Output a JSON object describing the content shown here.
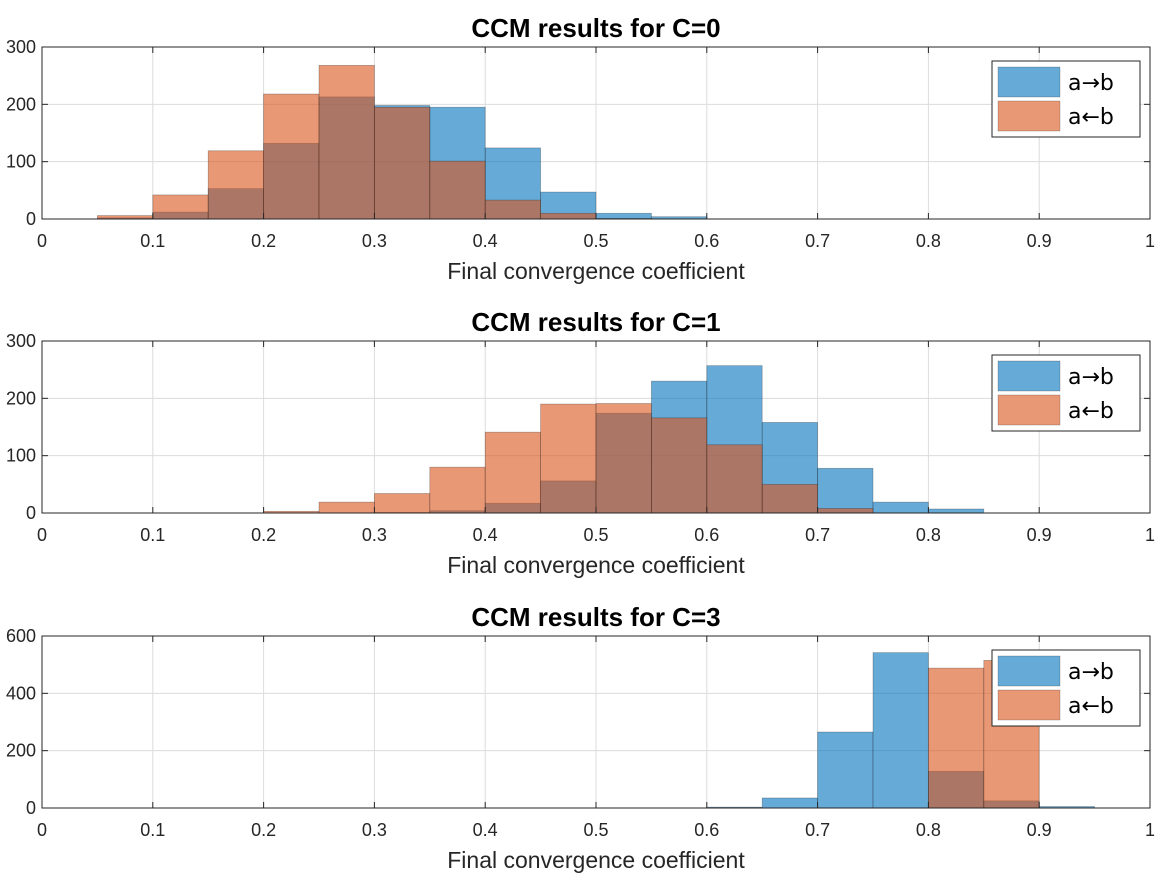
{
  "chart_data": [
    {
      "type": "bar",
      "title": "CCM results for C=0",
      "xlabel": "Final convergence coefficient",
      "ylabel": "",
      "xlim": [
        0,
        1
      ],
      "ylim": [
        0,
        300
      ],
      "xticks": [
        "0",
        "0.1",
        "0.2",
        "0.3",
        "0.4",
        "0.5",
        "0.6",
        "0.7",
        "0.8",
        "0.9",
        "1"
      ],
      "yticks": [
        "0",
        "100",
        "200",
        "300"
      ],
      "grid": true,
      "legend_position": "top-right",
      "bin_edges": [
        0,
        0.05,
        0.1,
        0.15,
        0.2,
        0.25,
        0.3,
        0.35,
        0.4,
        0.45,
        0.5,
        0.55,
        0.6,
        0.65,
        0.7,
        0.75,
        0.8,
        0.85,
        0.9,
        0.95,
        1
      ],
      "series": [
        {
          "name": "a→b",
          "color": "#0072BD",
          "values": [
            0,
            2,
            12,
            53,
            132,
            213,
            198,
            195,
            124,
            47,
            10,
            4,
            0,
            0,
            0,
            0,
            0,
            0,
            0,
            0
          ]
        },
        {
          "name": "a←b",
          "color": "#D95319",
          "values": [
            0,
            6,
            42,
            119,
            218,
            268,
            195,
            101,
            33,
            10,
            1,
            0,
            0,
            0,
            0,
            0,
            0,
            0,
            0,
            0
          ]
        }
      ]
    },
    {
      "type": "bar",
      "title": "CCM results for C=1",
      "xlabel": "Final convergence coefficient",
      "ylabel": "",
      "xlim": [
        0,
        1
      ],
      "ylim": [
        0,
        300
      ],
      "xticks": [
        "0",
        "0.1",
        "0.2",
        "0.3",
        "0.4",
        "0.5",
        "0.6",
        "0.7",
        "0.8",
        "0.9",
        "1"
      ],
      "yticks": [
        "0",
        "100",
        "200",
        "300"
      ],
      "grid": true,
      "legend_position": "top-right",
      "bin_edges": [
        0,
        0.05,
        0.1,
        0.15,
        0.2,
        0.25,
        0.3,
        0.35,
        0.4,
        0.45,
        0.5,
        0.55,
        0.6,
        0.65,
        0.7,
        0.75,
        0.8,
        0.85,
        0.9,
        0.95,
        1
      ],
      "series": [
        {
          "name": "a→b",
          "color": "#0072BD",
          "values": [
            0,
            0,
            0,
            0,
            0,
            0,
            1,
            4,
            17,
            56,
            174,
            230,
            257,
            158,
            78,
            19,
            7,
            0,
            0,
            0
          ]
        },
        {
          "name": "a←b",
          "color": "#D95319",
          "values": [
            0,
            0,
            0,
            0,
            3,
            19,
            34,
            80,
            141,
            190,
            191,
            166,
            119,
            50,
            8,
            0,
            0,
            0,
            0,
            0
          ]
        }
      ]
    },
    {
      "type": "bar",
      "title": "CCM results for C=3",
      "xlabel": "Final convergence coefficient",
      "ylabel": "",
      "xlim": [
        0,
        1
      ],
      "ylim": [
        0,
        600
      ],
      "xticks": [
        "0",
        "0.1",
        "0.2",
        "0.3",
        "0.4",
        "0.5",
        "0.6",
        "0.7",
        "0.8",
        "0.9",
        "1"
      ],
      "yticks": [
        "0",
        "200",
        "400",
        "600"
      ],
      "grid": true,
      "legend_position": "top-right",
      "bin_edges": [
        0,
        0.05,
        0.1,
        0.15,
        0.2,
        0.25,
        0.3,
        0.35,
        0.4,
        0.45,
        0.5,
        0.55,
        0.6,
        0.65,
        0.7,
        0.75,
        0.8,
        0.85,
        0.9,
        0.95,
        1
      ],
      "series": [
        {
          "name": "a→b",
          "color": "#0072BD",
          "values": [
            0,
            0,
            0,
            0,
            0,
            0,
            0,
            0,
            0,
            0,
            0,
            0,
            3,
            35,
            265,
            542,
            128,
            25,
            5,
            0
          ]
        },
        {
          "name": "a←b",
          "color": "#D95319",
          "values": [
            0,
            0,
            0,
            0,
            0,
            0,
            0,
            0,
            0,
            0,
            0,
            0,
            0,
            0,
            0,
            0,
            488,
            515,
            0,
            0
          ]
        }
      ]
    }
  ]
}
